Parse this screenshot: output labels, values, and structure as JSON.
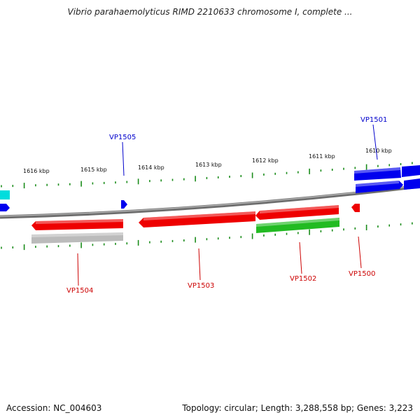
{
  "title": "Vibrio parahaemolyticus RIMD 2210633 chromosome I, complete ...",
  "footer": {
    "accession": "Accession: NC_004603",
    "stats": "Topology: circular; Length: 3,288,558 bp; Genes: 3,223"
  },
  "ruler": {
    "ticks": [
      "1616 kbp",
      "1615 kbp",
      "1614 kbp",
      "1613 kbp",
      "1612 kbp",
      "1611 kbp",
      "1610 kbp"
    ]
  },
  "genes": [
    {
      "label": "VP1505",
      "color": "#0000cc"
    },
    {
      "label": "VP1501",
      "color": "#0000cc"
    },
    {
      "label": "VP1504",
      "color": "#cc0000"
    },
    {
      "label": "VP1503",
      "color": "#cc0000"
    },
    {
      "label": "VP1502",
      "color": "#cc0000"
    },
    {
      "label": "VP1500",
      "color": "#cc0000"
    }
  ],
  "colors": {
    "backbone": "#808080",
    "tick": "#1a8c1a",
    "forward_cds": "#0000ee",
    "reverse_cds": "#ee0000",
    "rna": "#22bb22",
    "other": "#bbbbbb",
    "cyan": "#00dddd"
  }
}
